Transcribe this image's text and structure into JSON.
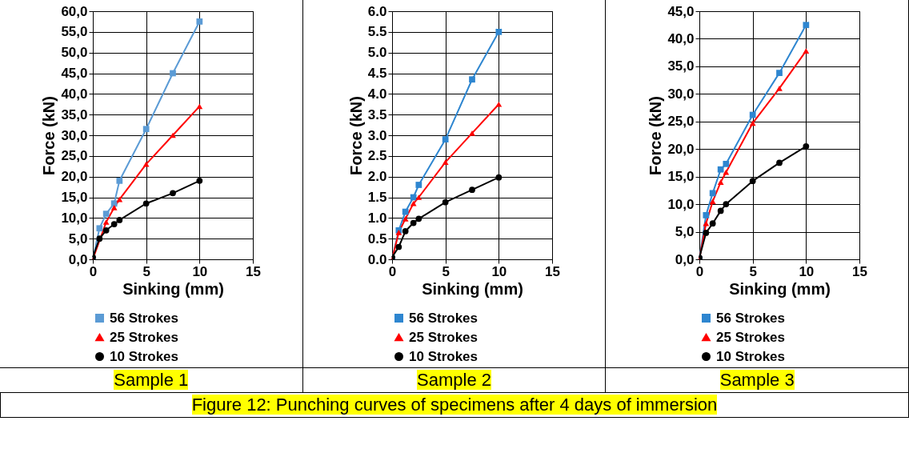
{
  "chart_data": [
    {
      "type": "line",
      "xlabel": "Sinking (mm)",
      "ylabel": "Force (kN)",
      "x": [
        0,
        0.625,
        1.25,
        2,
        2.5,
        5,
        7.5,
        10
      ],
      "xlim": [
        0,
        15
      ],
      "xticks": [
        0,
        5,
        10,
        15
      ],
      "ylim": [
        0,
        60
      ],
      "yticks": [
        {
          "value": 0,
          "label": "0,0"
        },
        {
          "value": 5,
          "label": "5,0"
        },
        {
          "value": 10,
          "label": "10,0"
        },
        {
          "value": 15,
          "label": "15,0"
        },
        {
          "value": 20,
          "label": "20,0"
        },
        {
          "value": 25,
          "label": "25,0"
        },
        {
          "value": 30,
          "label": "30,0"
        },
        {
          "value": 35,
          "label": "35,0"
        },
        {
          "value": 40,
          "label": "40,0"
        },
        {
          "value": 45,
          "label": "45,0"
        },
        {
          "value": 50,
          "label": "50,0"
        },
        {
          "value": 55,
          "label": "55,0"
        },
        {
          "value": 60,
          "label": "60,0"
        }
      ],
      "grid": true,
      "legend": "bottom",
      "annotations": [
        "Sample 1",
        "Figure 12: Punching curves of specimens after 4 days of immersion"
      ],
      "series": [
        {
          "name": "56 Strokes",
          "color": "#5b9bd5",
          "marker": "square",
          "values": [
            0,
            7.5,
            11,
            13.5,
            19,
            31.5,
            45,
            57.5
          ]
        },
        {
          "name": "25 Strokes",
          "color": "#ff0000",
          "marker": "triangle",
          "values": [
            0,
            null,
            9,
            12.5,
            14.5,
            23,
            30,
            37
          ]
        },
        {
          "name": "10 Strokes",
          "color": "#000000",
          "marker": "circle",
          "values": [
            0.5,
            5,
            7,
            8.5,
            9.5,
            13.5,
            16,
            19
          ]
        }
      ]
    },
    {
      "type": "line",
      "xlabel": "Sinking (mm)",
      "ylabel": "Force (kN)",
      "x": [
        0,
        0.625,
        1.25,
        2,
        2.5,
        5,
        7.5,
        10
      ],
      "xlim": [
        0,
        15
      ],
      "xticks": [
        0,
        5,
        10,
        15
      ],
      "ylim": [
        0,
        6
      ],
      "yticks": [
        {
          "value": 0,
          "label": "0.0"
        },
        {
          "value": 0.5,
          "label": "0.5"
        },
        {
          "value": 1,
          "label": "1.0"
        },
        {
          "value": 1.5,
          "label": "1.5"
        },
        {
          "value": 2,
          "label": "2.0"
        },
        {
          "value": 2.5,
          "label": "2.5"
        },
        {
          "value": 3,
          "label": "3.0"
        },
        {
          "value": 3.5,
          "label": "3.5"
        },
        {
          "value": 4,
          "label": "4.0"
        },
        {
          "value": 4.5,
          "label": "4.5"
        },
        {
          "value": 5,
          "label": "5.0"
        },
        {
          "value": 5.5,
          "label": "5.5"
        },
        {
          "value": 6,
          "label": "6.0"
        }
      ],
      "grid": true,
      "legend": "bottom",
      "annotations": [
        "Sample 2"
      ],
      "series": [
        {
          "name": "56 Strokes",
          "color": "#2e86d0",
          "marker": "square",
          "values": [
            0,
            0.7,
            1.15,
            1.5,
            1.8,
            2.9,
            4.35,
            5.5
          ]
        },
        {
          "name": "25 Strokes",
          "color": "#ff0000",
          "marker": "triangle",
          "values": [
            0,
            0.65,
            0.98,
            1.35,
            1.5,
            2.35,
            3.05,
            3.75
          ]
        },
        {
          "name": "10 Strokes",
          "color": "#000000",
          "marker": "circle",
          "values": [
            0.05,
            0.3,
            0.68,
            0.88,
            0.98,
            1.38,
            1.68,
            1.98
          ]
        }
      ]
    },
    {
      "type": "line",
      "xlabel": "Sinking (mm)",
      "ylabel": "Force (kN)",
      "x": [
        0,
        0.625,
        1.25,
        2,
        2.5,
        5,
        7.5,
        10
      ],
      "xlim": [
        0,
        15
      ],
      "xticks": [
        0,
        5,
        10,
        15
      ],
      "ylim": [
        0,
        45
      ],
      "yticks": [
        {
          "value": 0,
          "label": "0,0"
        },
        {
          "value": 5,
          "label": "5,0"
        },
        {
          "value": 10,
          "label": "10,0"
        },
        {
          "value": 15,
          "label": "15,0"
        },
        {
          "value": 20,
          "label": "20,0"
        },
        {
          "value": 25,
          "label": "25,0"
        },
        {
          "value": 30,
          "label": "30,0"
        },
        {
          "value": 35,
          "label": "35,0"
        },
        {
          "value": 40,
          "label": "40,0"
        },
        {
          "value": 45,
          "label": "45,0"
        }
      ],
      "grid": true,
      "legend": "bottom",
      "annotations": [
        "Sample 3"
      ],
      "series": [
        {
          "name": "56 Strokes",
          "color": "#2e86d0",
          "marker": "square",
          "values": [
            0,
            8,
            12,
            16.3,
            17.3,
            26.2,
            33.8,
            42.5
          ]
        },
        {
          "name": "25 Strokes",
          "color": "#ff0000",
          "marker": "triangle",
          "values": [
            0,
            6.5,
            10.5,
            14,
            15.8,
            24.7,
            31,
            37.8
          ]
        },
        {
          "name": "10 Strokes",
          "color": "#000000",
          "marker": "circle",
          "values": [
            0.3,
            4.8,
            6.5,
            8.8,
            10,
            14.2,
            17.5,
            20.5
          ]
        }
      ]
    }
  ]
}
